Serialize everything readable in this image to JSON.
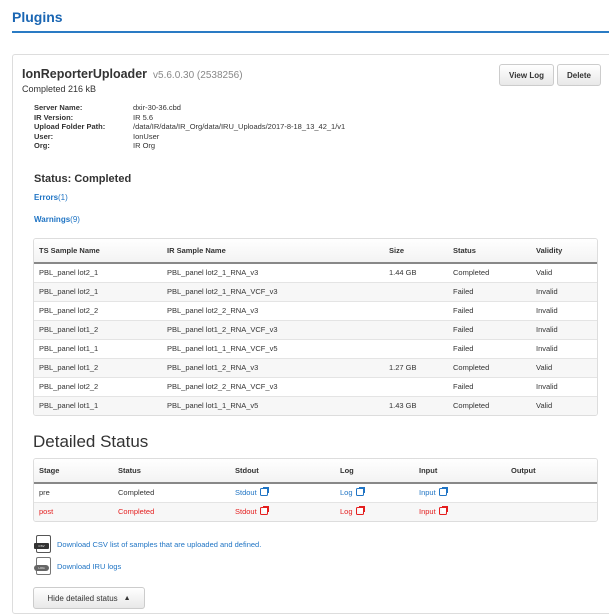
{
  "header": {
    "title": "Plugins"
  },
  "plugin": {
    "name": "IonReporterUploader",
    "version": "v5.6.0.30 (2538256)",
    "progress": "Completed 216 kB",
    "view_log": "View Log",
    "delete": "Delete"
  },
  "info": [
    {
      "label": "Server Name:",
      "value": "dxir-30-36.cbd"
    },
    {
      "label": "IR Version:",
      "value": "IR 5.6"
    },
    {
      "label": "Upload Folder Path:",
      "value": "/data/IR/data/IR_Org/data/IRU_Uploads/2017-8-18_13_42_1/v1"
    },
    {
      "label": "User:",
      "value": "IonUser"
    },
    {
      "label": "Org:",
      "value": "IR Org"
    }
  ],
  "status": "Status: Completed",
  "errors": {
    "label": "Errors",
    "count": "(1)"
  },
  "warnings": {
    "label": "Warnings",
    "count": "(9)"
  },
  "samples": {
    "columns": [
      "TS Sample Name",
      "IR Sample Name",
      "Size",
      "Status",
      "Validity"
    ],
    "rows": [
      [
        "PBL_panel lot2_1",
        "PBL_panel lot2_1_RNA_v3",
        "1.44 GB",
        "Completed",
        "Valid"
      ],
      [
        "PBL_panel lot2_1",
        "PBL_panel lot2_1_RNA_VCF_v3",
        "",
        "Failed",
        "Invalid"
      ],
      [
        "PBL_panel lot2_2",
        "PBL_panel lot2_2_RNA_v3",
        "",
        "Failed",
        "Invalid"
      ],
      [
        "PBL_panel lot1_2",
        "PBL_panel lot1_2_RNA_VCF_v3",
        "",
        "Failed",
        "Invalid"
      ],
      [
        "PBL_panel lot1_1",
        "PBL_panel lot1_1_RNA_VCF_v5",
        "",
        "Failed",
        "Invalid"
      ],
      [
        "PBL_panel lot1_2",
        "PBL_panel lot1_2_RNA_v3",
        "1.27 GB",
        "Completed",
        "Valid"
      ],
      [
        "PBL_panel lot2_2",
        "PBL_panel lot2_2_RNA_VCF_v3",
        "",
        "Failed",
        "Invalid"
      ],
      [
        "PBL_panel lot1_1",
        "PBL_panel lot1_1_RNA_v5",
        "1.43 GB",
        "Completed",
        "Valid"
      ]
    ]
  },
  "detailed": {
    "title": "Detailed Status",
    "columns": [
      "Stage",
      "Status",
      "Stdout",
      "Log",
      "Input",
      "Output"
    ],
    "rows": [
      {
        "stage": "pre",
        "status": "Completed",
        "stdout": "Stdout",
        "log": "Log",
        "input": "Input",
        "output": "",
        "error": false
      },
      {
        "stage": "post",
        "status": "Completed",
        "stdout": "Stdout",
        "log": "Log",
        "input": "Input",
        "output": "",
        "error": true
      }
    ]
  },
  "downloads": {
    "csv": "Download CSV list of samples that are uploaded and defined.",
    "csv_icon": "CSV",
    "logs": "Download IRU logs",
    "logs_icon": "LOG"
  },
  "hide_button": "Hide detailed status",
  "colors": {
    "accent": "#1f74c4",
    "error": "#e41e1e"
  }
}
